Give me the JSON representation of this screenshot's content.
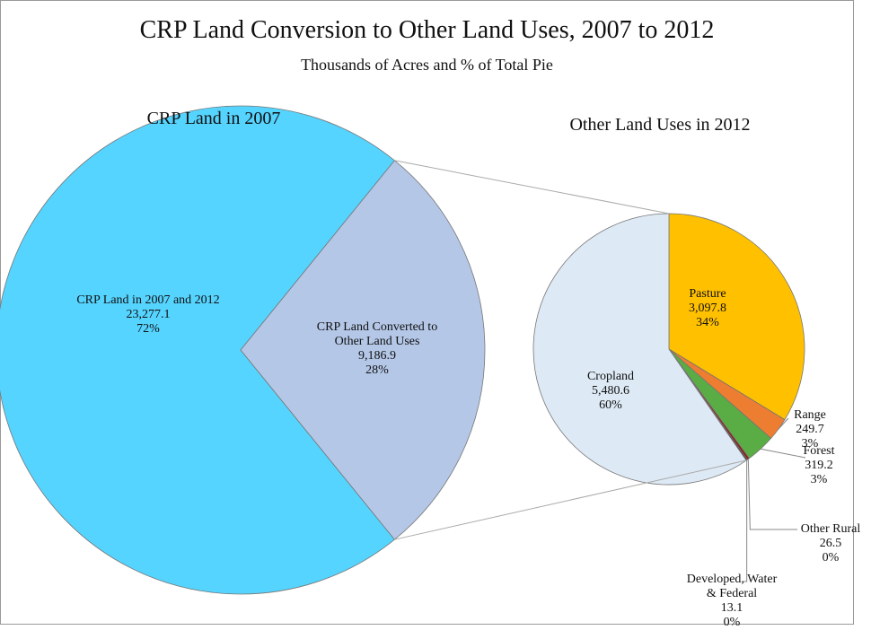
{
  "chart_data": [
    {
      "type": "pie",
      "title": "CRP Land Conversion to Other Land Uses, 2007 to 2012",
      "subtitle": "Thousands of Acres and % of Total Pie",
      "pie_title": "CRP Land in 2007",
      "categories": [
        "CRP Land in 2007 and 2012",
        "CRP Land Converted to Other Land Uses"
      ],
      "values": [
        23277.1,
        9186.9
      ],
      "value_labels": [
        "23,277.1",
        "9,186.9"
      ],
      "percent_labels": [
        "72%",
        "28%"
      ],
      "colors": [
        "#55d4ff",
        "#b4c7e7"
      ]
    },
    {
      "type": "pie",
      "pie_title": "Other Land Uses in 2012",
      "categories": [
        "Pasture",
        "Range",
        "Forest",
        "Other Rural",
        "Developed, Water & Federal",
        "Cropland"
      ],
      "values": [
        3097.8,
        249.7,
        319.2,
        26.5,
        13.1,
        5480.6
      ],
      "value_labels": [
        "3,097.8",
        "249.7",
        "319.2",
        "26.5",
        "13.1",
        "5,480.6"
      ],
      "percent_labels": [
        "34%",
        "3%",
        "3%",
        "0%",
        "0%",
        "60%"
      ],
      "colors": [
        "#ffc000",
        "#ed7d31",
        "#5aac44",
        "#8b1a1a",
        "#222222",
        "#dde9f5"
      ]
    }
  ]
}
